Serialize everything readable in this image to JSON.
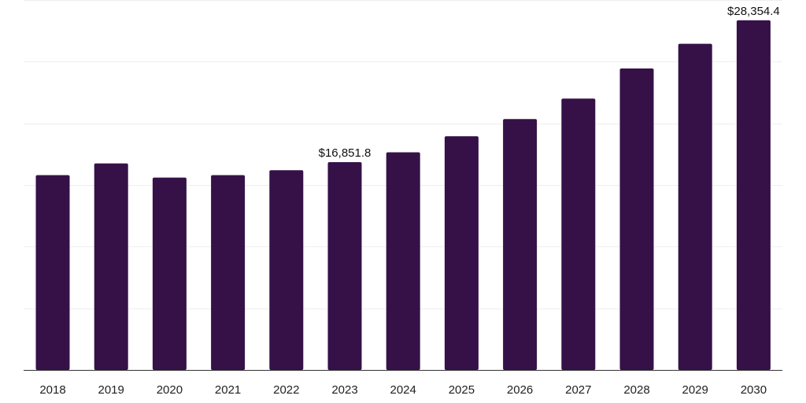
{
  "chart_data": {
    "type": "bar",
    "categories": [
      "2018",
      "2019",
      "2020",
      "2021",
      "2022",
      "2023",
      "2024",
      "2025",
      "2026",
      "2027",
      "2028",
      "2029",
      "2030"
    ],
    "values": [
      15800,
      16750,
      15600,
      15800,
      16200,
      16851.8,
      17650,
      18950,
      20350,
      22000,
      24450,
      26450,
      28354.4
    ],
    "data_labels": [
      {
        "category": "2023",
        "text": "$16,851.8"
      },
      {
        "category": "2030",
        "text": "$28,354.4"
      }
    ],
    "title": "",
    "xlabel": "",
    "ylabel": "",
    "ylim": [
      0,
      30000
    ],
    "grid": true,
    "y_tick_labels_shown": false,
    "colors": {
      "bar": "#361148",
      "grid": "#eeeeee",
      "axis": "#333333"
    }
  }
}
